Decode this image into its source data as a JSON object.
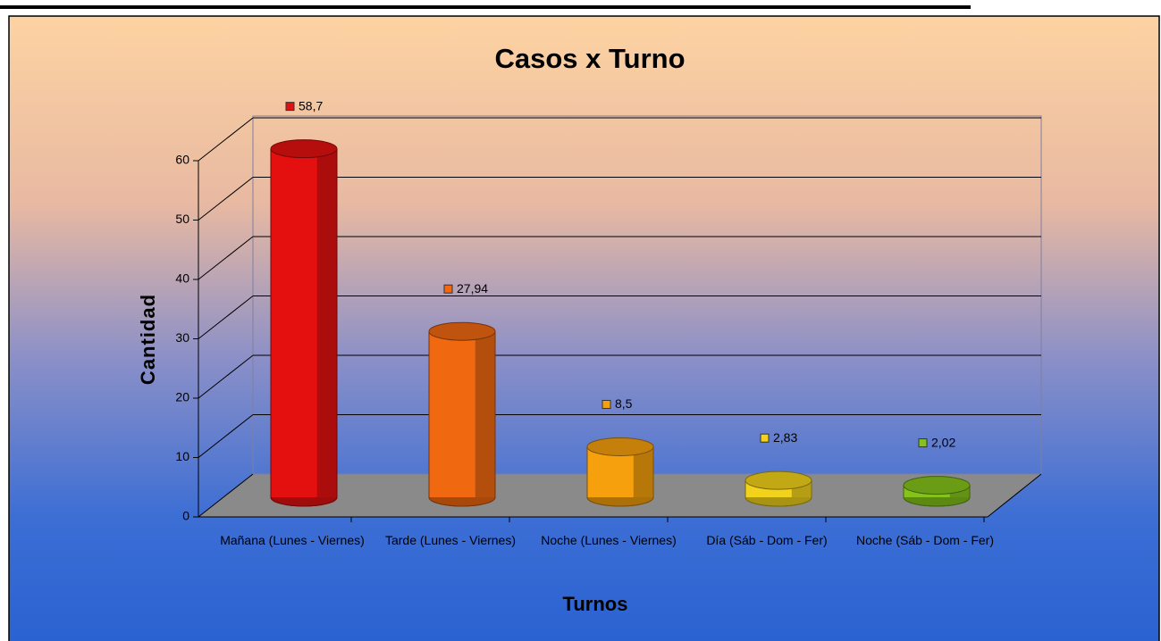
{
  "chart_data": {
    "type": "bar3d",
    "title": "Casos x Turno",
    "x_label": "Turnos",
    "y_label": "Cantidad",
    "categories": [
      "Mañana (Lunes - Viernes)",
      "Tarde (Lunes - Viernes)",
      "Noche (Lunes - Viernes)",
      "Día (Sáb - Dom - Fer)",
      "Noche (Sáb - Dom - Fer)"
    ],
    "values": [
      58.7,
      27.94,
      8.5,
      2.83,
      2.02
    ],
    "value_labels": [
      "58,7",
      "27,94",
      "8,5",
      "2,83",
      "2,02"
    ],
    "colors": [
      "#e41010",
      "#f06810",
      "#f5a00c",
      "#f2d21a",
      "#84c41a"
    ],
    "ylim": [
      0,
      60
    ],
    "yticks": [
      0,
      10,
      20,
      30,
      40,
      50,
      60
    ],
    "grid": true
  }
}
